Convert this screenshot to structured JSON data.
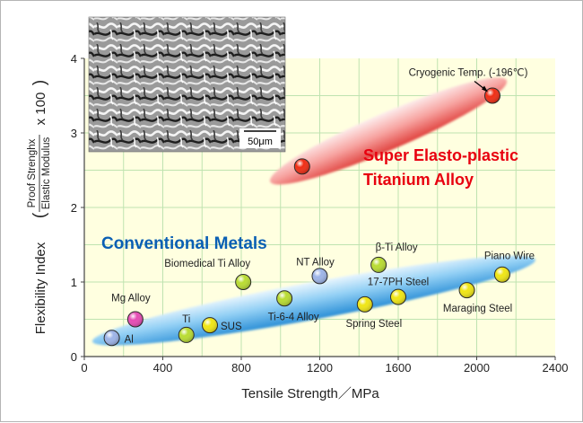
{
  "chart_data": {
    "type": "scatter",
    "xlabel": "Tensile Strength／MPa",
    "ylabel": {
      "prefix": "Flexibility Index",
      "numerator": "Proof Strenghx",
      "denominator": "Elastic Modulus",
      "suffix": "x 100"
    },
    "xlim": [
      0,
      2400
    ],
    "ylim": [
      0,
      4
    ],
    "xticks": [
      "0",
      "400",
      "800",
      "1200",
      "1600",
      "2000",
      "2400"
    ],
    "yticks": [
      "0",
      "1",
      "2",
      "3",
      "4"
    ],
    "grid": true,
    "plot_background": "#ffffe0",
    "grid_color": "#bfe3b0",
    "inset_scale_label": "50μm",
    "groups": [
      {
        "name": "Conventional Metals",
        "color": "#0a5fb4",
        "ellipse": {
          "x1": 140,
          "y1": 0.25,
          "x2": 2200,
          "y2": 1.25,
          "width": 0.5
        }
      },
      {
        "name": "Super Elasto-plastic Titanium Alloy",
        "lines": [
          "Super Elasto-plastic",
          "Titanium Alloy"
        ],
        "color": "#e8000f",
        "ellipse": {
          "x1": 1040,
          "y1": 2.45,
          "x2": 2060,
          "y2": 3.6,
          "width": 0.5
        }
      }
    ],
    "points": [
      {
        "label": "Al",
        "x": 140,
        "y": 0.25,
        "color": "#9db4e8",
        "label_anchor": "start",
        "label_dx": 14,
        "label_dy": 5
      },
      {
        "label": "Mg Alloy",
        "x": 260,
        "y": 0.5,
        "color": "#e64bb4",
        "label_anchor": "middle",
        "label_dx": -5,
        "label_dy": -20
      },
      {
        "label": "Ti",
        "x": 520,
        "y": 0.29,
        "color": "#b9dc32",
        "label_anchor": "middle",
        "label_dx": 0,
        "label_dy": -14
      },
      {
        "label": "SUS",
        "x": 640,
        "y": 0.42,
        "color": "#f0e614",
        "label_anchor": "start",
        "label_dx": 12,
        "label_dy": 5
      },
      {
        "label": "Biomedical Ti Alloy",
        "x": 810,
        "y": 1.0,
        "color": "#b9dc32",
        "label_anchor": "middle",
        "label_dx": -40,
        "label_dy": -17
      },
      {
        "label": "Ti-6-4 Alloy",
        "x": 1020,
        "y": 0.78,
        "color": "#b9dc32",
        "label_anchor": "middle",
        "label_dx": 10,
        "label_dy": 24
      },
      {
        "label": "NT Alloy",
        "x": 1200,
        "y": 1.08,
        "color": "#9db4e8",
        "label_anchor": "middle",
        "label_dx": -5,
        "label_dy": -12
      },
      {
        "label": "β-Ti Alloy",
        "x": 1500,
        "y": 1.23,
        "color": "#b9dc32",
        "label_anchor": "middle",
        "label_dx": 20,
        "label_dy": -16
      },
      {
        "label": "17-7PH Steel",
        "x": 1600,
        "y": 0.8,
        "color": "#f0e614",
        "label_anchor": "middle",
        "label_dx": 0,
        "label_dy": -13
      },
      {
        "label": "Spring Steel",
        "x": 1430,
        "y": 0.7,
        "color": "#f0e614",
        "label_anchor": "middle",
        "label_dx": 10,
        "label_dy": 25
      },
      {
        "label": "Maraging Steel",
        "x": 1950,
        "y": 0.89,
        "color": "#f0e614",
        "label_anchor": "middle",
        "label_dx": 12,
        "label_dy": 24
      },
      {
        "label": "Piano Wire",
        "x": 2130,
        "y": 1.1,
        "color": "#f0e614",
        "label_anchor": "middle",
        "label_dx": 8,
        "label_dy": -17
      },
      {
        "label": "",
        "x": 1110,
        "y": 2.55,
        "color": "#f02d14",
        "label_anchor": "middle",
        "label_dx": 0,
        "label_dy": 0
      },
      {
        "label": "Cryogenic Temp. (-196℃)",
        "x": 2080,
        "y": 3.5,
        "color": "#f02d14",
        "label_anchor": "middle",
        "label_dx": -27,
        "label_dy": -22
      }
    ]
  }
}
